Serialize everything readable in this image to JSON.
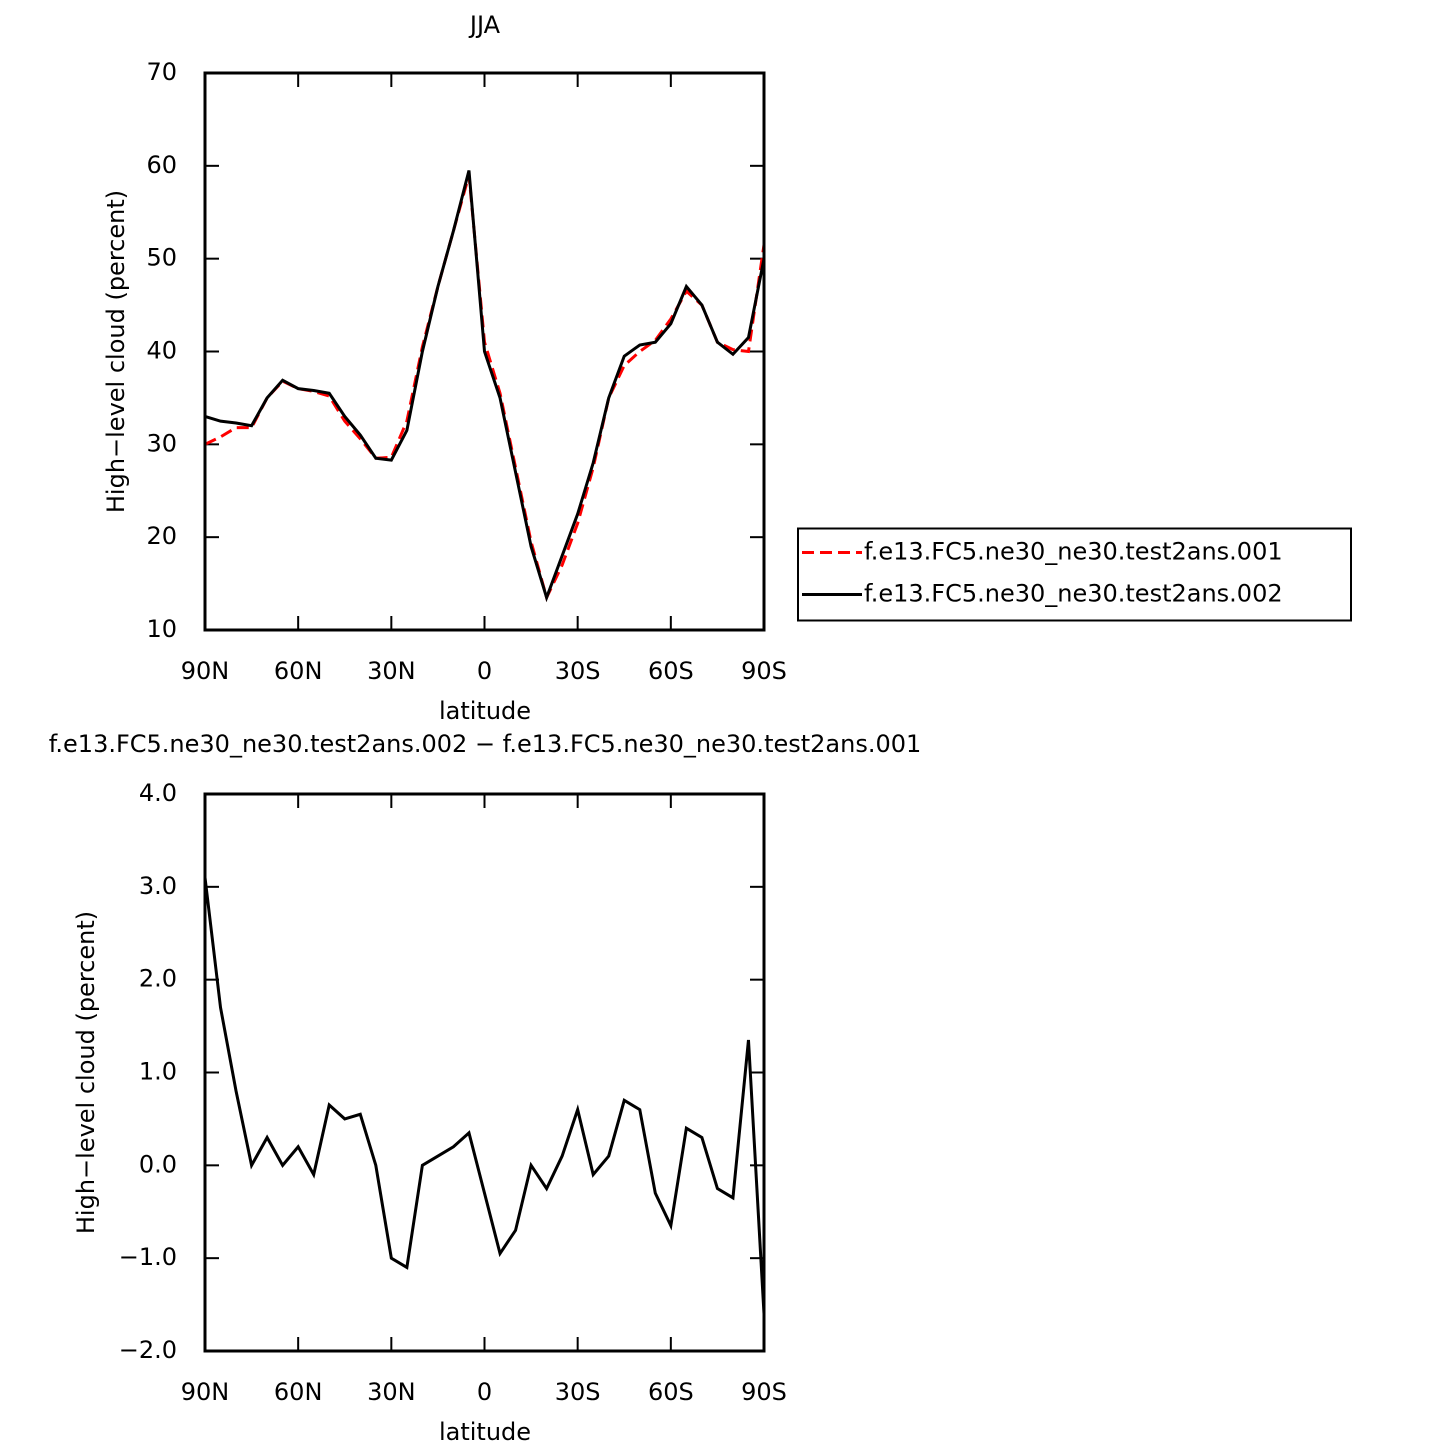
{
  "chart_data": [
    {
      "type": "line",
      "title": "JJA",
      "xlabel": "latitude",
      "ylabel": "High−level cloud (percent)",
      "x": [
        90,
        85,
        80,
        75,
        70,
        65,
        60,
        55,
        50,
        45,
        40,
        35,
        30,
        25,
        20,
        15,
        10,
        5,
        0,
        -5,
        -10,
        -15,
        -20,
        -25,
        -30,
        -35,
        -40,
        -45,
        -50,
        -55,
        -60,
        -65,
        -70,
        -75,
        -80,
        -85,
        -90
      ],
      "series": [
        {
          "name": "f.e13.FC5.ne30_ne30.test2ans.001",
          "color": "#ff0000",
          "dash": "dashed",
          "values": [
            30,
            30.8,
            31.8,
            31.8,
            35,
            36.8,
            36,
            35.7,
            35.2,
            32.5,
            30.6,
            28.5,
            28.6,
            32.5,
            40.5,
            47,
            53,
            59,
            41,
            35.5,
            27.5,
            19.5,
            13.5,
            17,
            21.5,
            27.5,
            35,
            38.5,
            40,
            41.2,
            43.5,
            46.5,
            45,
            41,
            40.2,
            40,
            51.5
          ]
        },
        {
          "name": "f.e13.FC5.ne30_ne30.test2ans.002",
          "color": "#000000",
          "dash": "solid",
          "values": [
            33,
            32.5,
            32.3,
            32,
            35,
            36.9,
            36,
            35.8,
            35.5,
            33,
            31,
            28.5,
            28.3,
            31.5,
            40,
            47,
            53,
            59.5,
            40,
            35,
            27,
            19,
            13.5,
            18,
            22.5,
            28,
            35,
            39.5,
            40.7,
            41,
            43,
            47,
            45,
            41,
            39.7,
            41.5,
            50
          ]
        }
      ],
      "xlim": [
        90,
        -90
      ],
      "ylim": [
        10,
        70
      ],
      "xticks": [
        {
          "value": 90,
          "label": "90N"
        },
        {
          "value": 60,
          "label": "60N"
        },
        {
          "value": 30,
          "label": "30N"
        },
        0,
        {
          "value": -30,
          "label": "30S"
        },
        {
          "value": -60,
          "label": "60S"
        },
        {
          "value": -90,
          "label": "90S"
        }
      ],
      "yticks": [
        10,
        20,
        30,
        40,
        50,
        60,
        70
      ],
      "legend": "right"
    },
    {
      "type": "line",
      "title": "f.e13.FC5.ne30_ne30.test2ans.002 − f.e13.FC5.ne30_ne30.test2ans.001",
      "xlabel": "latitude",
      "ylabel": "High−level cloud (percent)",
      "x": [
        90,
        85,
        80,
        75,
        70,
        65,
        60,
        55,
        50,
        45,
        40,
        35,
        30,
        25,
        20,
        15,
        10,
        5,
        0,
        -5,
        -10,
        -15,
        -20,
        -25,
        -30,
        -35,
        -40,
        -45,
        -50,
        -55,
        -60,
        -65,
        -70,
        -75,
        -80,
        -85,
        -90
      ],
      "series": [
        {
          "color": "#000000",
          "dash": "solid",
          "values": [
            3.1,
            1.7,
            0.8,
            0.0,
            0.3,
            0.0,
            0.2,
            -0.1,
            0.65,
            0.5,
            0.55,
            0.0,
            -1.0,
            -1.1,
            0.0,
            0.1,
            0.2,
            0.35,
            -0.3,
            -0.95,
            -0.7,
            0.0,
            -0.25,
            0.1,
            0.6,
            -0.1,
            0.1,
            0.7,
            0.6,
            -0.3,
            -0.65,
            0.4,
            0.3,
            -0.25,
            -0.35,
            1.35,
            -1.6
          ]
        }
      ],
      "xlim": [
        90,
        -90
      ],
      "ylim": [
        -2,
        4
      ],
      "xticks": [
        {
          "value": 90,
          "label": "90N"
        },
        {
          "value": 60,
          "label": "60N"
        },
        {
          "value": 30,
          "label": "30N"
        },
        0,
        {
          "value": -30,
          "label": "30S"
        },
        {
          "value": -60,
          "label": "60S"
        },
        {
          "value": -90,
          "label": "90S"
        }
      ],
      "yticks": [
        {
          "value": -2,
          "label": "−2.0"
        },
        {
          "value": -1,
          "label": "−1.0"
        },
        {
          "value": 0,
          "label": "0.0"
        },
        {
          "value": 1,
          "label": "1.0"
        },
        {
          "value": 2,
          "label": "2.0"
        },
        {
          "value": 3,
          "label": "3.0"
        },
        {
          "value": 4,
          "label": "4.0"
        }
      ]
    }
  ]
}
